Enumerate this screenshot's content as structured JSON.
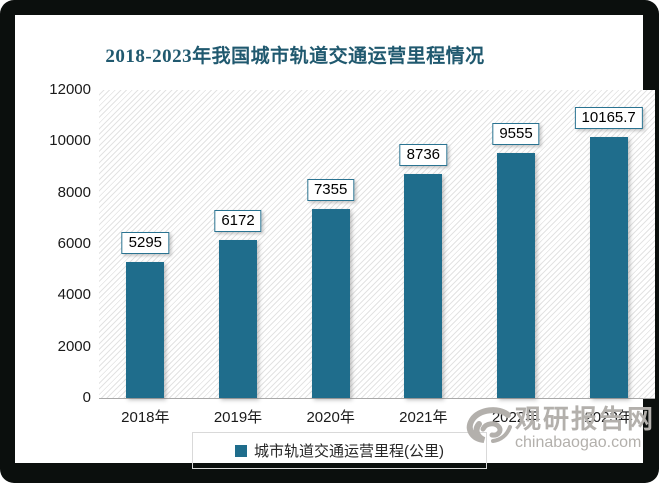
{
  "chart_data": {
    "type": "bar",
    "title": "2018-2023年我国城市轨道交通运营里程情况",
    "categories": [
      "2018年",
      "2019年",
      "2020年",
      "2021年",
      "2022年",
      "2023年"
    ],
    "values": [
      5295,
      6172,
      7355,
      8736,
      9555,
      10165.7
    ],
    "value_labels": [
      "5295",
      "6172",
      "7355",
      "8736",
      "9555",
      "10165.7"
    ],
    "series_name": "城市轨道交通运营里程(公里)",
    "xlabel": "",
    "ylabel": "",
    "ylim": [
      0,
      12000
    ],
    "yticks": [
      0,
      2000,
      4000,
      6000,
      8000,
      10000,
      12000
    ],
    "grid": false,
    "legend_position": "bottom"
  },
  "legend": {
    "label": "城市轨道交通运营里程(公里)"
  },
  "watermark": {
    "name": "观研报告网",
    "domain": "chinabaogao.com",
    "logo": "swirl-logo"
  },
  "colors": {
    "bar": "#1F6D8C",
    "title": "#20596F",
    "label_box_border": "#2A7391",
    "watermark_gray": "#B3B0AC",
    "axis_text": "#1A1A1A",
    "frame": "#0B0F0D"
  }
}
